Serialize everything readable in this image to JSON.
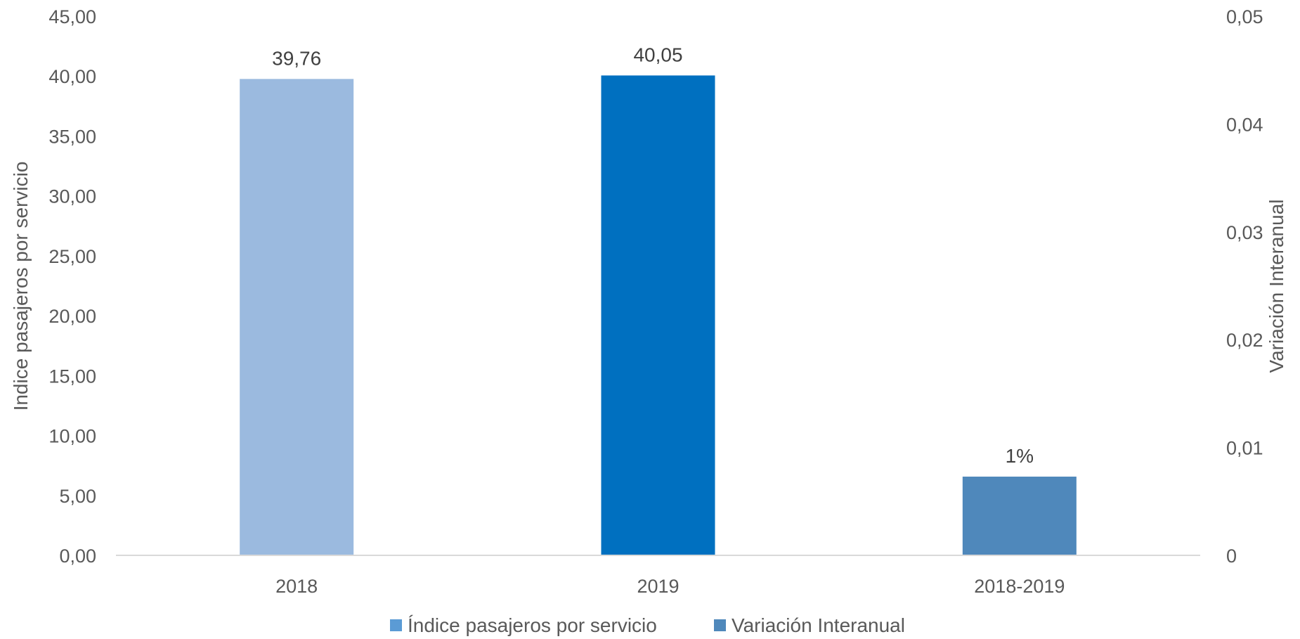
{
  "chart_data": {
    "type": "bar",
    "categories": [
      "2018",
      "2019",
      "2018-2019"
    ],
    "series": [
      {
        "name": "Índice pasajeros por servicio",
        "axis": "left",
        "values": [
          39.76,
          40.05,
          null
        ],
        "value_labels": [
          "39,76",
          "40,05",
          ""
        ],
        "bar_colors": [
          "#9bbadf",
          "#0070c0",
          null
        ]
      },
      {
        "name": "Variación Interanual",
        "axis": "right",
        "values": [
          null,
          null,
          0.0073
        ],
        "value_labels": [
          "",
          "",
          "1%"
        ],
        "bar_colors": [
          null,
          null,
          "#4f88bb"
        ]
      }
    ],
    "y_left": {
      "label": "Indice pasajeros por servicio",
      "lim": [
        0,
        45
      ],
      "ticks": [
        0,
        5,
        10,
        15,
        20,
        25,
        30,
        35,
        40,
        45
      ],
      "tick_labels": [
        "0,00",
        "5,00",
        "10,00",
        "15,00",
        "20,00",
        "25,00",
        "30,00",
        "35,00",
        "40,00",
        "45,00"
      ]
    },
    "y_right": {
      "label": "Variación Interanual",
      "lim": [
        0,
        0.05
      ],
      "ticks": [
        0,
        0.01,
        0.02,
        0.03,
        0.04,
        0.05
      ],
      "tick_labels": [
        "0",
        "0,01",
        "0,02",
        "0,03",
        "0,04",
        "0,05"
      ]
    },
    "legend": {
      "position": "bottom",
      "items": [
        {
          "label": "Índice pasajeros por servicio",
          "color": "#5b9bd5"
        },
        {
          "label": "Variación Interanual",
          "color": "#4f88bb"
        }
      ]
    },
    "grid": false,
    "colors": {
      "axis_line": "#d9d9d9",
      "text": "#595959",
      "label_text": "#404040"
    }
  }
}
